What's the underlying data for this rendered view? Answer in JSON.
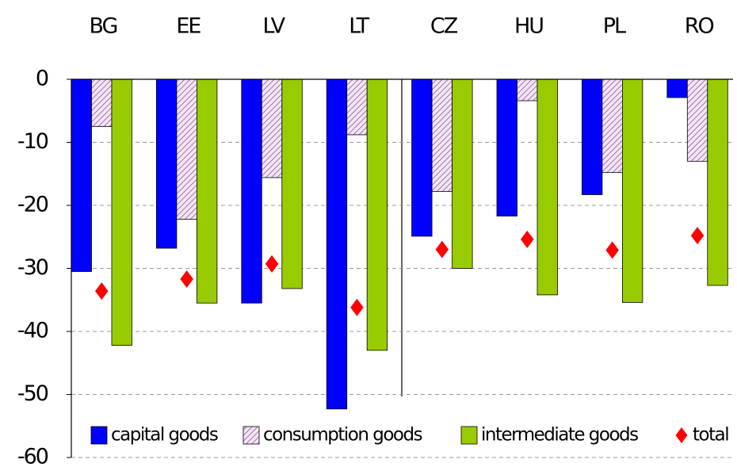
{
  "chart_data": {
    "type": "bar",
    "categories": [
      "BG",
      "EE",
      "LV",
      "LT",
      "CZ",
      "HU",
      "PL",
      "RO"
    ],
    "series": [
      {
        "name": "capital goods",
        "color": "#0000ff",
        "values": [
          -30.5,
          -26.8,
          -35.5,
          -52.3,
          -24.9,
          -21.7,
          -18.3,
          -2.9
        ]
      },
      {
        "name": "consumption goods",
        "color": "#cc99cc",
        "pattern": "hatch",
        "values": [
          -7.5,
          -22.2,
          -15.6,
          -8.8,
          -17.8,
          -3.4,
          -14.8,
          -13.0
        ]
      },
      {
        "name": "intermediate goods",
        "color": "#99cc00",
        "values": [
          -42.2,
          -35.5,
          -33.2,
          -43.0,
          -30.0,
          -34.2,
          -35.4,
          -32.7
        ]
      },
      {
        "name": "total",
        "color": "#ff0000",
        "marker": "diamond",
        "values": [
          -33.6,
          -31.7,
          -29.3,
          -36.2,
          -27.0,
          -25.4,
          -27.1,
          -24.8
        ]
      }
    ],
    "ylim": [
      -60,
      0
    ],
    "yticks": [
      0,
      -10,
      -20,
      -30,
      -40,
      -50,
      -60
    ],
    "grid": true,
    "legend": "bottom"
  }
}
